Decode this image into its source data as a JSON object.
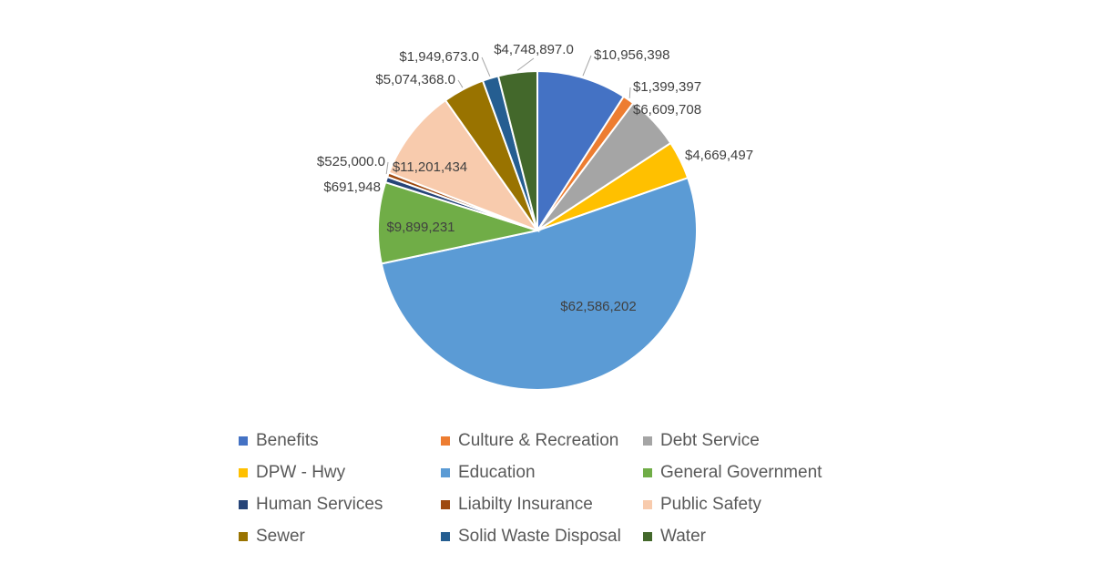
{
  "chart_data": {
    "type": "pie",
    "title": "",
    "legend_position": "bottom",
    "slices": [
      {
        "name": "Benefits",
        "value": 10956398,
        "label": "$10,956,398",
        "color": "#4472C4"
      },
      {
        "name": "Culture & Recreation",
        "value": 1399397,
        "label": "$1,399,397",
        "color": "#ED7D31"
      },
      {
        "name": "Debt Service",
        "value": 6609708,
        "label": "$6,609,708",
        "color": "#A5A5A5"
      },
      {
        "name": "DPW - Hwy",
        "value": 4669497,
        "label": "$4,669,497",
        "color": "#FFC000"
      },
      {
        "name": "Education",
        "value": 62586202,
        "label": "$62,586,202",
        "color": "#5B9BD5"
      },
      {
        "name": "General Government",
        "value": 9899231,
        "label": "$9,899,231",
        "color": "#70AD47"
      },
      {
        "name": "Human Services",
        "value": 691948,
        "label": "$691,948",
        "color": "#264478"
      },
      {
        "name": "Liabilty Insurance",
        "value": 525000,
        "label": "$525,000.0",
        "color": "#9E480E"
      },
      {
        "name": "Public Safety",
        "value": 11201434,
        "label": "$11,201,434",
        "color": "#F8CBAD"
      },
      {
        "name": "Sewer",
        "value": 5074368,
        "label": "$5,074,368.0",
        "color": "#997300"
      },
      {
        "name": "Solid Waste Disposal",
        "value": 1949673,
        "label": "$1,949,673.0",
        "color": "#255E91"
      },
      {
        "name": "Water",
        "value": 4748897,
        "label": "$4,748,897.0",
        "color": "#43682B"
      }
    ]
  }
}
